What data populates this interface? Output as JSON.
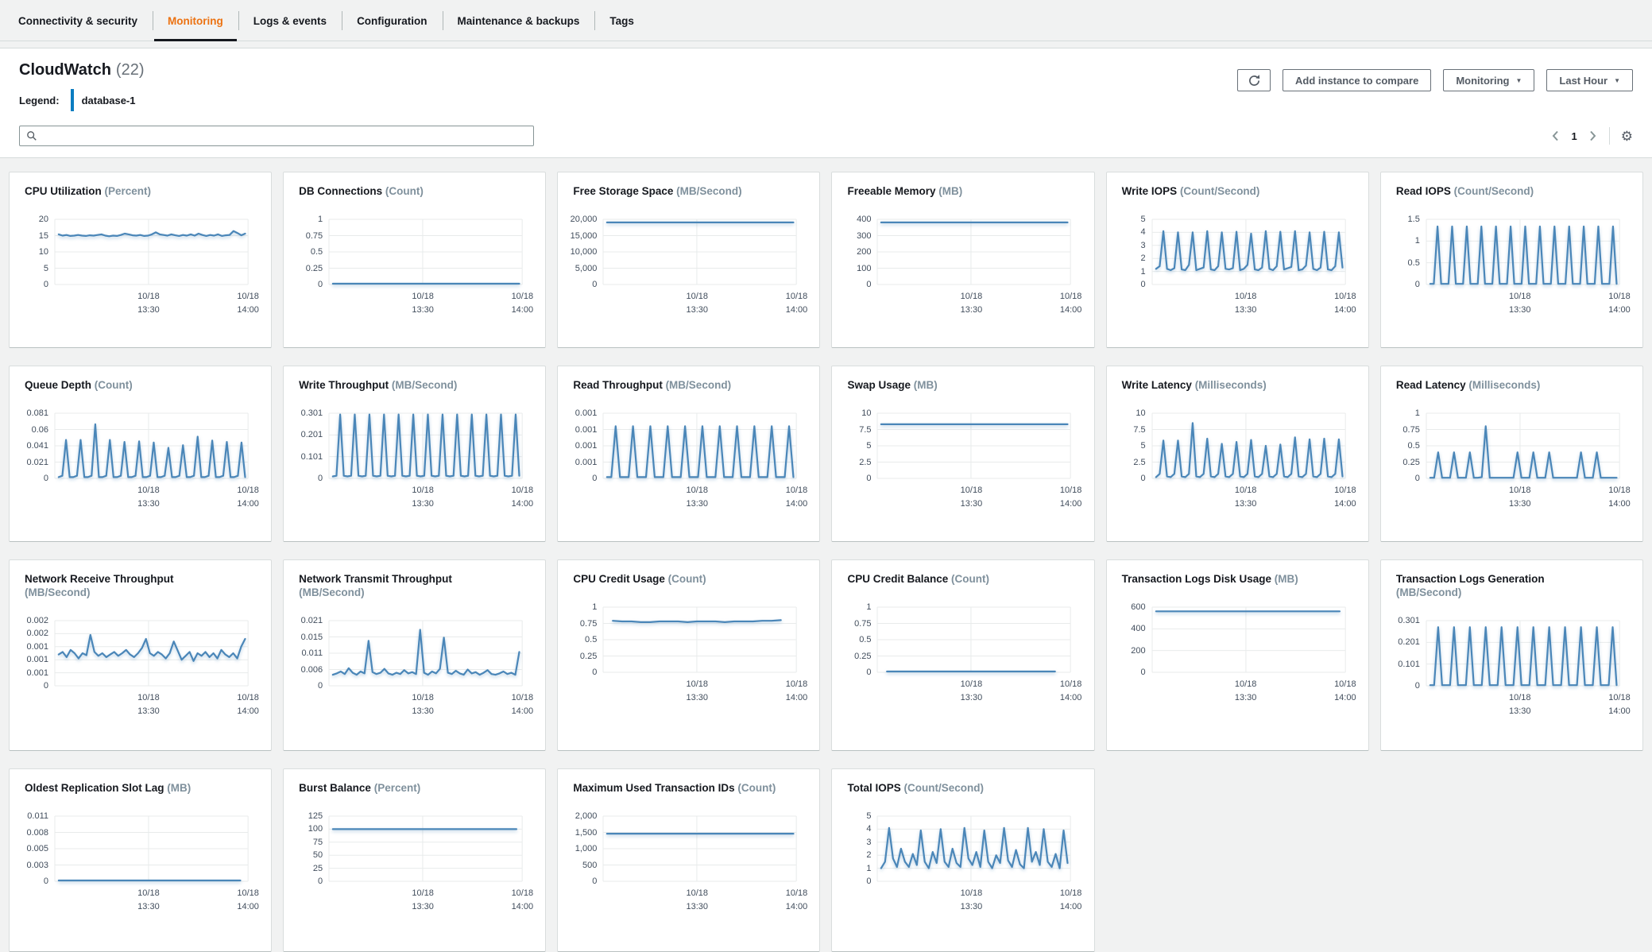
{
  "colors": {
    "accent_tab": "#ec7211",
    "line": "#4a86b8",
    "legend_bar": "#0b7dc1",
    "grid_line": "#e8ebeb"
  },
  "tabs": {
    "items": [
      {
        "label": "Connectivity & security",
        "active": false
      },
      {
        "label": "Monitoring",
        "active": true
      },
      {
        "label": "Logs & events",
        "active": false
      },
      {
        "label": "Configuration",
        "active": false
      },
      {
        "label": "Maintenance & backups",
        "active": false
      },
      {
        "label": "Tags",
        "active": false
      }
    ]
  },
  "panel": {
    "title": "CloudWatch",
    "count": "(22)",
    "legend_label": "Legend:",
    "legend_value": "database-1",
    "search_placeholder": "",
    "buttons": [
      {
        "label": "Add instance to compare",
        "caret": false
      },
      {
        "label": "Monitoring",
        "caret": true
      },
      {
        "label": "Last Hour",
        "caret": true
      }
    ],
    "pagination": {
      "page": "1"
    }
  },
  "x_axis": {
    "labels": [
      {
        "date": "10/18",
        "time": "13:30"
      },
      {
        "date": "10/18",
        "time": "14:00"
      }
    ]
  },
  "chart_data": {
    "type": "line",
    "note": "normalized y values 0-1 of axis max; x spread evenly x0..x1"
  },
  "charts": [
    {
      "title": "CPU Utilization",
      "unit": "(Percent)",
      "y_ticks": [
        "20",
        "15",
        "10",
        "5",
        "0"
      ],
      "series": {
        "y": [
          0.77,
          0.75,
          0.76,
          0.745,
          0.75,
          0.76,
          0.75,
          0.745,
          0.755,
          0.75,
          0.76,
          0.77,
          0.75,
          0.74,
          0.75,
          0.745,
          0.76,
          0.78,
          0.77,
          0.755,
          0.75,
          0.76,
          0.745,
          0.75,
          0.77,
          0.8,
          0.77,
          0.76,
          0.75,
          0.77,
          0.755,
          0.745,
          0.76,
          0.75,
          0.77,
          0.75,
          0.78,
          0.76,
          0.745,
          0.76,
          0.75,
          0.77,
          0.745,
          0.755,
          0.76,
          0.82,
          0.79,
          0.755,
          0.78
        ]
      }
    },
    {
      "title": "DB Connections",
      "unit": "(Count)",
      "y_ticks": [
        "1",
        "0.75",
        "0.5",
        "0.25",
        "0"
      ],
      "series": {
        "y": [
          0.012,
          0.012
        ]
      }
    },
    {
      "title": "Free Storage Space",
      "unit": "(MB/Second)",
      "y_ticks": [
        "20,000",
        "15,000",
        "10,000",
        "5,000",
        "0"
      ],
      "series": {
        "y": [
          0.953,
          0.953
        ]
      }
    },
    {
      "title": "Freeable Memory",
      "unit": "(MB)",
      "y_ticks": [
        "400",
        "300",
        "200",
        "100",
        "0"
      ],
      "series": {
        "y": [
          0.952,
          0.952
        ]
      }
    },
    {
      "title": "Write IOPS",
      "unit": "(Count/Second)",
      "y_ticks": [
        "5",
        "4",
        "3",
        "2",
        "1",
        "0"
      ],
      "series": {
        "y": [
          0.24,
          0.28,
          0.82,
          0.24,
          0.22,
          0.25,
          0.8,
          0.23,
          0.22,
          0.3,
          0.8,
          0.22,
          0.24,
          0.26,
          0.82,
          0.23,
          0.22,
          0.28,
          0.8,
          0.24,
          0.23,
          0.25,
          0.81,
          0.22,
          0.24,
          0.3,
          0.78,
          0.23,
          0.22,
          0.26,
          0.82,
          0.24,
          0.22,
          0.28,
          0.81,
          0.23,
          0.25,
          0.27,
          0.82,
          0.22,
          0.23,
          0.29,
          0.8,
          0.24,
          0.22,
          0.26,
          0.81,
          0.23,
          0.22,
          0.28,
          0.8,
          0.26
        ]
      }
    },
    {
      "title": "Read IOPS",
      "unit": "(Count/Second)",
      "y_ticks": [
        "1.5",
        "1",
        "0.5",
        "0"
      ],
      "series": {
        "y": [
          0.01,
          0.01,
          0.89,
          0.01,
          0.01,
          0.01,
          0.89,
          0.01,
          0.01,
          0.01,
          0.89,
          0.01,
          0.01,
          0.01,
          0.89,
          0.01,
          0.01,
          0.01,
          0.89,
          0.01,
          0.01,
          0.01,
          0.89,
          0.01,
          0.01,
          0.01,
          0.89,
          0.01,
          0.01,
          0.01,
          0.89,
          0.01,
          0.01,
          0.01,
          0.89,
          0.01,
          0.01,
          0.01,
          0.89,
          0.01,
          0.01,
          0.01,
          0.89,
          0.01,
          0.01,
          0.01,
          0.89,
          0.01,
          0.01,
          0.01,
          0.89,
          0.01
        ]
      }
    },
    {
      "title": "Queue Depth",
      "unit": "(Count)",
      "y_ticks": [
        "0.081",
        "0.06",
        "0.041",
        "0.021",
        "0"
      ],
      "series": {
        "y": [
          0.02,
          0.04,
          0.59,
          0.02,
          0.02,
          0.04,
          0.59,
          0.02,
          0.02,
          0.04,
          0.83,
          0.02,
          0.02,
          0.04,
          0.59,
          0.02,
          0.02,
          0.04,
          0.56,
          0.02,
          0.02,
          0.04,
          0.57,
          0.02,
          0.02,
          0.04,
          0.55,
          0.02,
          0.02,
          0.04,
          0.47,
          0.02,
          0.02,
          0.04,
          0.51,
          0.02,
          0.02,
          0.04,
          0.64,
          0.02,
          0.02,
          0.04,
          0.58,
          0.02,
          0.02,
          0.04,
          0.56,
          0.02,
          0.02,
          0.04,
          0.55,
          0.02
        ]
      }
    },
    {
      "title": "Write Throughput",
      "unit": "(MB/Second)",
      "y_ticks": [
        "0.301",
        "0.201",
        "0.101",
        "0"
      ],
      "series": {
        "y": [
          0.03,
          0.04,
          0.98,
          0.04,
          0.03,
          0.04,
          0.98,
          0.04,
          0.03,
          0.04,
          0.98,
          0.04,
          0.03,
          0.04,
          0.98,
          0.04,
          0.03,
          0.04,
          0.98,
          0.04,
          0.03,
          0.04,
          0.98,
          0.04,
          0.03,
          0.04,
          0.98,
          0.04,
          0.03,
          0.04,
          0.98,
          0.04,
          0.03,
          0.04,
          0.98,
          0.04,
          0.03,
          0.04,
          0.98,
          0.04,
          0.03,
          0.04,
          0.98,
          0.04,
          0.03,
          0.04,
          0.98,
          0.04,
          0.03,
          0.04,
          0.98,
          0.04
        ]
      }
    },
    {
      "title": "Read Throughput",
      "unit": "(MB/Second)",
      "y_ticks": [
        "0.001",
        "0.001",
        "0.001",
        "0.001",
        "0"
      ],
      "series": {
        "y": [
          0.02,
          0.02,
          0.8,
          0.02,
          0.02,
          0.02,
          0.8,
          0.02,
          0.02,
          0.02,
          0.8,
          0.02,
          0.02,
          0.02,
          0.8,
          0.02,
          0.02,
          0.02,
          0.8,
          0.02,
          0.02,
          0.02,
          0.8,
          0.02,
          0.02,
          0.02,
          0.8,
          0.02,
          0.02,
          0.02,
          0.8,
          0.02,
          0.02,
          0.02,
          0.8,
          0.02,
          0.02,
          0.02,
          0.8,
          0.02,
          0.02,
          0.02,
          0.8,
          0.02
        ]
      }
    },
    {
      "title": "Swap Usage",
      "unit": "(MB)",
      "y_ticks": [
        "10",
        "7.5",
        "5",
        "2.5",
        "0"
      ],
      "series": {
        "y": [
          0.83,
          0.83
        ]
      }
    },
    {
      "title": "Write Latency",
      "unit": "(Milliseconds)",
      "y_ticks": [
        "10",
        "7.5",
        "5",
        "2.5",
        "0"
      ],
      "series": {
        "y": [
          0.02,
          0.07,
          0.58,
          0.03,
          0.02,
          0.07,
          0.58,
          0.03,
          0.02,
          0.07,
          0.85,
          0.03,
          0.02,
          0.07,
          0.61,
          0.03,
          0.02,
          0.07,
          0.53,
          0.03,
          0.02,
          0.07,
          0.56,
          0.03,
          0.02,
          0.07,
          0.59,
          0.03,
          0.02,
          0.07,
          0.5,
          0.03,
          0.02,
          0.07,
          0.52,
          0.03,
          0.02,
          0.07,
          0.63,
          0.03,
          0.02,
          0.07,
          0.6,
          0.03,
          0.02,
          0.07,
          0.61,
          0.03,
          0.02,
          0.07,
          0.6,
          0.03
        ]
      }
    },
    {
      "title": "Read Latency",
      "unit": "(Milliseconds)",
      "y_ticks": [
        "1",
        "0.75",
        "0.5",
        "0.25",
        "0"
      ],
      "series": {
        "y": [
          0.01,
          0.01,
          0.4,
          0.01,
          0.01,
          0.01,
          0.4,
          0.01,
          0.01,
          0.01,
          0.4,
          0.01,
          0.01,
          0.02,
          0.8,
          0.01,
          0.01,
          0.01,
          0.01,
          0.01,
          0.01,
          0.01,
          0.4,
          0.01,
          0.01,
          0.01,
          0.4,
          0.01,
          0.01,
          0.01,
          0.4,
          0.01,
          0.01,
          0.01,
          0.01,
          0.01,
          0.01,
          0.01,
          0.4,
          0.01,
          0.01,
          0.01,
          0.4,
          0.01,
          0.01,
          0.01,
          0.01,
          0.01
        ]
      }
    },
    {
      "title": "Network Receive Throughput",
      "unit": "(MB/Second)",
      "wrap": true,
      "y_ticks": [
        "0.002",
        "0.002",
        "0.001",
        "0.001",
        "0.001",
        "0"
      ],
      "series": {
        "y": [
          0.48,
          0.52,
          0.44,
          0.55,
          0.5,
          0.42,
          0.5,
          0.47,
          0.78,
          0.52,
          0.46,
          0.5,
          0.44,
          0.48,
          0.52,
          0.46,
          0.5,
          0.55,
          0.48,
          0.44,
          0.5,
          0.58,
          0.72,
          0.5,
          0.46,
          0.52,
          0.48,
          0.42,
          0.5,
          0.68,
          0.54,
          0.4,
          0.46,
          0.52,
          0.38,
          0.5,
          0.46,
          0.52,
          0.44,
          0.5,
          0.42,
          0.55,
          0.48,
          0.44,
          0.5,
          0.42,
          0.6,
          0.72
        ]
      }
    },
    {
      "title": "Network Transmit Throughput",
      "unit": "(MB/Second)",
      "wrap": true,
      "y_ticks": [
        "0.021",
        "0.015",
        "0.011",
        "0.006",
        "0"
      ],
      "series": {
        "y": [
          0.17,
          0.19,
          0.22,
          0.18,
          0.27,
          0.2,
          0.17,
          0.22,
          0.19,
          0.69,
          0.21,
          0.18,
          0.2,
          0.26,
          0.19,
          0.17,
          0.2,
          0.18,
          0.24,
          0.19,
          0.21,
          0.18,
          0.86,
          0.2,
          0.17,
          0.22,
          0.19,
          0.26,
          0.74,
          0.2,
          0.18,
          0.23,
          0.19,
          0.17,
          0.25,
          0.19,
          0.21,
          0.17,
          0.2,
          0.24,
          0.18,
          0.17,
          0.19,
          0.22,
          0.18,
          0.2,
          0.17,
          0.52
        ]
      }
    },
    {
      "title": "CPU Credit Usage",
      "unit": "(Count)",
      "y_ticks": [
        "1",
        "0.75",
        "0.5",
        "0.25",
        "0"
      ],
      "series": {
        "x0": 0.05,
        "x1": 0.92,
        "y": [
          0.79,
          0.78,
          0.78,
          0.77,
          0.77,
          0.78,
          0.78,
          0.78,
          0.77,
          0.78,
          0.78,
          0.78,
          0.77,
          0.78,
          0.78,
          0.78,
          0.79,
          0.79,
          0.8
        ]
      }
    },
    {
      "title": "CPU Credit Balance",
      "unit": "(Count)",
      "y_ticks": [
        "1",
        "0.75",
        "0.5",
        "0.25",
        "0"
      ],
      "series": {
        "x0": 0.05,
        "x1": 0.92,
        "y": [
          0.012,
          0.012
        ]
      }
    },
    {
      "title": "Transaction Logs Disk Usage",
      "unit": "(MB)",
      "y_ticks": [
        "600",
        "400",
        "200",
        "0"
      ],
      "series": {
        "x1": 0.97,
        "y": [
          0.935,
          0.935
        ]
      }
    },
    {
      "title": "Transaction Logs Generation",
      "unit": "(MB/Second)",
      "wrap": true,
      "y_ticks": [
        "0.301",
        "0.201",
        "0.101",
        "0"
      ],
      "series": {
        "y": [
          0.01,
          0.01,
          0.9,
          0.01,
          0.01,
          0.01,
          0.9,
          0.01,
          0.01,
          0.01,
          0.9,
          0.01,
          0.01,
          0.01,
          0.9,
          0.01,
          0.01,
          0.01,
          0.9,
          0.01,
          0.01,
          0.01,
          0.9,
          0.01,
          0.01,
          0.01,
          0.9,
          0.01,
          0.01,
          0.01,
          0.9,
          0.01,
          0.01,
          0.01,
          0.9,
          0.01,
          0.01,
          0.01,
          0.9,
          0.01,
          0.01,
          0.01,
          0.9,
          0.01,
          0.01,
          0.01,
          0.9,
          0.01
        ]
      }
    },
    {
      "title": "Oldest Replication Slot Lag",
      "unit": "(MB)",
      "y_ticks": [
        "0.011",
        "0.008",
        "0.005",
        "0.003",
        "0"
      ],
      "series": {
        "x1": 0.96,
        "y": [
          0.012,
          0.012
        ]
      }
    },
    {
      "title": "Burst Balance",
      "unit": "(Percent)",
      "y_ticks": [
        "125",
        "100",
        "75",
        "50",
        "25",
        "0"
      ],
      "series": {
        "x1": 0.97,
        "y": [
          0.8,
          0.8
        ]
      }
    },
    {
      "title": "Maximum Used Transaction IDs",
      "unit": "(Count)",
      "y_ticks": [
        "2,000",
        "1,500",
        "1,000",
        "500",
        "0"
      ],
      "series": {
        "y": [
          0.73,
          0.73
        ]
      }
    },
    {
      "title": "Total IOPS",
      "unit": "(Count/Second)",
      "y_ticks": [
        "5",
        "4",
        "3",
        "2",
        "1",
        "0"
      ],
      "series": {
        "y": [
          0.2,
          0.3,
          0.82,
          0.35,
          0.22,
          0.5,
          0.3,
          0.22,
          0.42,
          0.25,
          0.78,
          0.3,
          0.2,
          0.45,
          0.28,
          0.8,
          0.3,
          0.22,
          0.5,
          0.28,
          0.22,
          0.82,
          0.35,
          0.25,
          0.45,
          0.22,
          0.78,
          0.3,
          0.2,
          0.4,
          0.28,
          0.82,
          0.32,
          0.22,
          0.48,
          0.26,
          0.2,
          0.82,
          0.3,
          0.45,
          0.25,
          0.8,
          0.3,
          0.22,
          0.42,
          0.2,
          0.78,
          0.28
        ]
      }
    }
  ]
}
